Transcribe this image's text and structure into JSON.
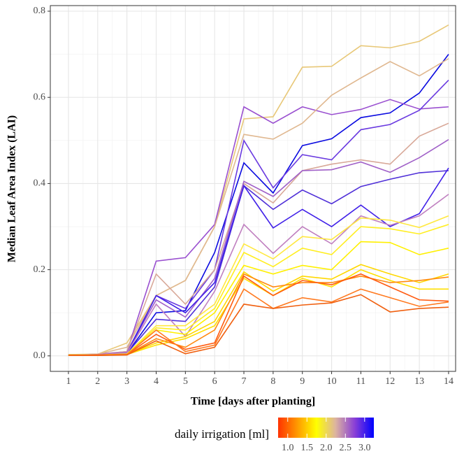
{
  "chart_data": {
    "type": "line",
    "x_label": "Time [days after planting]",
    "y_label": "Median Leaf Area Index (LAI)",
    "x": [
      1,
      2,
      3,
      4,
      5,
      6,
      7,
      8,
      9,
      10,
      11,
      12,
      13,
      14
    ],
    "xlim": [
      0.38,
      14.24
    ],
    "xticks": [
      1,
      2,
      3,
      4,
      5,
      6,
      7,
      8,
      9,
      10,
      11,
      12,
      13,
      14
    ],
    "ylim": [
      -0.036,
      0.813
    ],
    "yticks": [
      {
        "value": 0,
        "label": "0.0"
      },
      0.2,
      0.4,
      0.6,
      0.8
    ],
    "grid": true,
    "colorbar": {
      "title": "daily irrigation [ml]",
      "lim": [
        0.75,
        3.24
      ],
      "colors": [
        "#ff3300",
        "#ff9900",
        "#ffff00",
        "#dcb4a0",
        "#8a3fd6",
        "#0000ff"
      ],
      "ticks": [
        {
          "value": 1,
          "label": "1.0"
        },
        1.5,
        {
          "value": 2,
          "label": "2.0"
        },
        2.5,
        {
          "value": 3,
          "label": "3.0"
        }
      ]
    },
    "series": [
      {
        "color": "#e8c878",
        "values": [
          0.003,
          0.004,
          0.03,
          0.14,
          0.175,
          0.3,
          0.55,
          0.555,
          0.67,
          0.672,
          0.72,
          0.715,
          0.73,
          0.768
        ]
      },
      {
        "color": "#0a0ae0",
        "values": [
          0.002,
          0.002,
          0.005,
          0.1,
          0.105,
          0.24,
          0.448,
          0.378,
          0.488,
          0.504,
          0.553,
          0.564,
          0.61,
          0.7
        ]
      },
      {
        "color": "#9a50d0",
        "values": [
          0.002,
          0.004,
          0.01,
          0.22,
          0.228,
          0.305,
          0.578,
          0.54,
          0.578,
          0.56,
          0.572,
          0.595,
          0.573,
          0.578
        ]
      },
      {
        "color": "#6a3ae0",
        "values": [
          0.002,
          0.003,
          0.008,
          0.14,
          0.11,
          0.2,
          0.5,
          0.39,
          0.467,
          0.455,
          0.525,
          0.537,
          0.57,
          0.64
        ]
      },
      {
        "color": "#e0b890",
        "values": [
          0.003,
          0.004,
          0.02,
          0.14,
          0.175,
          0.3,
          0.514,
          0.503,
          0.54,
          0.605,
          0.645,
          0.683,
          0.65,
          0.69
        ]
      },
      {
        "color": "#d8a898",
        "values": [
          0.002,
          0.003,
          0.01,
          0.19,
          0.12,
          0.2,
          0.4,
          0.355,
          0.43,
          0.445,
          0.455,
          0.445,
          0.51,
          0.54
        ]
      },
      {
        "color": "#a060c8",
        "values": [
          0.002,
          0.003,
          0.008,
          0.13,
          0.09,
          0.18,
          0.405,
          0.37,
          0.43,
          0.432,
          0.45,
          0.426,
          0.46,
          0.502
        ]
      },
      {
        "color": "#5030d8",
        "values": [
          0.002,
          0.002,
          0.006,
          0.085,
          0.08,
          0.16,
          0.395,
          0.34,
          0.385,
          0.353,
          0.393,
          0.41,
          0.425,
          0.43
        ]
      },
      {
        "color": "#4020e8",
        "values": [
          0.001,
          0.002,
          0.005,
          0.14,
          0.1,
          0.17,
          0.395,
          0.297,
          0.34,
          0.3,
          0.35,
          0.3,
          0.33,
          0.436
        ]
      },
      {
        "color": "#c080c0",
        "values": [
          0.002,
          0.003,
          0.006,
          0.12,
          0.045,
          0.15,
          0.305,
          0.238,
          0.3,
          0.26,
          0.325,
          0.303,
          0.325,
          0.375
        ]
      },
      {
        "color": "#ffe840",
        "values": [
          0.002,
          0.002,
          0.004,
          0.07,
          0.07,
          0.12,
          0.26,
          0.225,
          0.277,
          0.27,
          0.32,
          0.315,
          0.298,
          0.325
        ]
      },
      {
        "color": "#ffee20",
        "values": [
          0.002,
          0.002,
          0.004,
          0.065,
          0.06,
          0.11,
          0.24,
          0.207,
          0.25,
          0.235,
          0.3,
          0.295,
          0.283,
          0.305
        ]
      },
      {
        "color": "#fff000",
        "values": [
          0.001,
          0.002,
          0.004,
          0.06,
          0.05,
          0.1,
          0.21,
          0.19,
          0.21,
          0.2,
          0.265,
          0.263,
          0.235,
          0.25
        ]
      },
      {
        "color": "#ffd800",
        "values": [
          0.001,
          0.002,
          0.003,
          0.03,
          0.045,
          0.08,
          0.195,
          0.15,
          0.185,
          0.178,
          0.212,
          0.19,
          0.17,
          0.19
        ]
      },
      {
        "color": "#ffe000",
        "values": [
          0.001,
          0.002,
          0.003,
          0.025,
          0.04,
          0.07,
          0.18,
          0.14,
          0.18,
          0.16,
          0.2,
          0.175,
          0.155,
          0.155
        ]
      },
      {
        "color": "#ff8a10",
        "values": [
          0.001,
          0.002,
          0.003,
          0.04,
          0.02,
          0.06,
          0.19,
          0.16,
          0.17,
          0.17,
          0.185,
          0.17,
          0.175,
          0.183
        ]
      },
      {
        "color": "#ff5a10",
        "values": [
          0.001,
          0.002,
          0.003,
          0.05,
          0.015,
          0.03,
          0.185,
          0.14,
          0.175,
          0.165,
          0.19,
          0.16,
          0.13,
          0.127
        ]
      },
      {
        "color": "#ff7a20",
        "values": [
          0.001,
          0.001,
          0.003,
          0.06,
          0.01,
          0.025,
          0.155,
          0.11,
          0.135,
          0.125,
          0.155,
          0.135,
          0.115,
          0.125
        ]
      },
      {
        "color": "#f06010",
        "values": [
          0.001,
          0.001,
          0.002,
          0.035,
          0.005,
          0.02,
          0.12,
          0.11,
          0.118,
          0.123,
          0.142,
          0.102,
          0.11,
          0.113
        ]
      }
    ]
  }
}
